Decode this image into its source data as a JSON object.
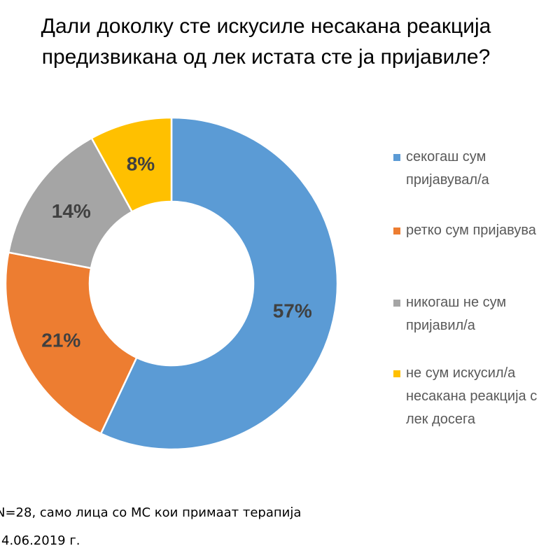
{
  "chart_data": {
    "type": "pie",
    "subtype": "donut",
    "title": "Дали доколку сте искусиле несакана реакција предизвикана од лек истата сте ја пријавиле?",
    "title_lines": [
      "Дали доколку сте искусиле несакана реакција",
      "предизвикана од лек истата сте ја пријавиле?"
    ],
    "categories": [
      "секогаш сум пријавувал/а",
      "ретко сум пријавувал/а",
      "никогаш не сум пријавил/а",
      "не сум искусил/а несакана реакција од лек досега"
    ],
    "legend_lines": [
      [
        "секогаш сум",
        "пријавувал/а"
      ],
      [
        "ретко сум пријавува"
      ],
      [
        "никогаш не сум",
        "пријавил/а"
      ],
      [
        "не сум искусил/а",
        "несакана реакција с",
        "лек досега"
      ]
    ],
    "values": [
      57,
      21,
      14,
      8
    ],
    "data_labels": [
      "57%",
      "21%",
      "14%",
      "8%"
    ],
    "colors": [
      "#5B9BD5",
      "#ED7D31",
      "#A5A5A5",
      "#FFC000"
    ],
    "legend_position": "right"
  },
  "footnotes": {
    "sample": "N=28, само лица со МС кои примаат терапија",
    "date": "4.06.2019 г."
  }
}
